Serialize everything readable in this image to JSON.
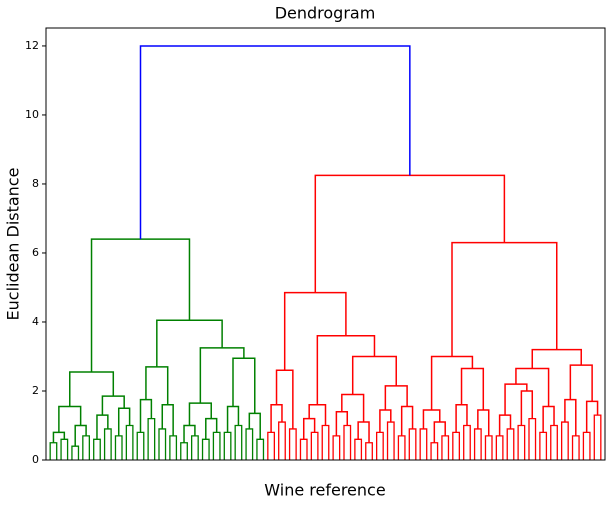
{
  "chart_data": {
    "type": "dendrogram",
    "title": "Dendrogram",
    "xlabel": "Wine reference",
    "ylabel": "Euclidean Distance",
    "ylim": [
      0,
      12.52
    ],
    "yticks": [
      0,
      2,
      4,
      6,
      8,
      10,
      12
    ],
    "tree": {
      "height": 12,
      "color": "#0000ff",
      "children": [
        {
          "height": 6.4,
          "color": "#008000",
          "children": [
            {
              "height": 2.55,
              "children": [
                {
                  "height": 1.55,
                  "children": [
                    {
                      "height": 0.8,
                      "children": [
                        {
                          "height": 0.5
                        },
                        {
                          "height": 0.6
                        }
                      ]
                    },
                    {
                      "height": 1.0,
                      "children": [
                        {
                          "height": 0.4
                        },
                        {
                          "height": 0.7
                        }
                      ]
                    }
                  ]
                },
                {
                  "height": 1.85,
                  "children": [
                    {
                      "height": 1.3,
                      "children": [
                        {
                          "height": 0.6
                        },
                        {
                          "height": 0.9
                        }
                      ]
                    },
                    {
                      "height": 1.5,
                      "children": [
                        {
                          "height": 0.7
                        },
                        {
                          "height": 1.0
                        }
                      ]
                    }
                  ]
                }
              ]
            },
            {
              "height": 4.05,
              "children": [
                {
                  "height": 2.7,
                  "children": [
                    {
                      "height": 1.75,
                      "children": [
                        {
                          "height": 0.8
                        },
                        {
                          "height": 1.2
                        }
                      ]
                    },
                    {
                      "height": 1.6,
                      "children": [
                        {
                          "height": 0.9
                        },
                        {
                          "height": 0.7
                        }
                      ]
                    }
                  ]
                },
                {
                  "height": 3.25,
                  "children": [
                    {
                      "height": 1.65,
                      "children": [
                        {
                          "height": 1.0,
                          "children": [
                            {
                              "height": 0.5
                            },
                            {
                              "height": 0.7
                            }
                          ]
                        },
                        {
                          "height": 1.2,
                          "children": [
                            {
                              "height": 0.6
                            },
                            {
                              "height": 0.8
                            }
                          ]
                        }
                      ]
                    },
                    {
                      "height": 2.95,
                      "children": [
                        {
                          "height": 1.55,
                          "children": [
                            {
                              "height": 0.8
                            },
                            {
                              "height": 1.0
                            }
                          ]
                        },
                        {
                          "height": 1.35,
                          "children": [
                            {
                              "height": 0.9
                            },
                            {
                              "height": 0.6
                            }
                          ]
                        }
                      ]
                    }
                  ]
                }
              ]
            }
          ]
        },
        {
          "height": 8.25,
          "color": "#ff0000",
          "children": [
            {
              "height": 4.85,
              "children": [
                {
                  "height": 2.6,
                  "children": [
                    {
                      "height": 1.6,
                      "children": [
                        {
                          "height": 0.8
                        },
                        {
                          "height": 1.1
                        }
                      ]
                    },
                    {
                      "height": 0.9
                    }
                  ]
                },
                {
                  "height": 3.6,
                  "children": [
                    {
                      "height": 1.6,
                      "children": [
                        {
                          "height": 1.2,
                          "children": [
                            {
                              "height": 0.6
                            },
                            {
                              "height": 0.8
                            }
                          ]
                        },
                        {
                          "height": 1.0
                        }
                      ]
                    },
                    {
                      "height": 3.0,
                      "children": [
                        {
                          "height": 1.9,
                          "children": [
                            {
                              "height": 1.4,
                              "children": [
                                {
                                  "height": 0.7
                                },
                                {
                                  "height": 1.0
                                }
                              ]
                            },
                            {
                              "height": 1.1,
                              "children": [
                                {
                                  "height": 0.6
                                },
                                {
                                  "height": 0.5
                                }
                              ]
                            }
                          ]
                        },
                        {
                          "height": 2.15,
                          "children": [
                            {
                              "height": 1.45,
                              "children": [
                                {
                                  "height": 0.8
                                },
                                {
                                  "height": 1.1
                                }
                              ]
                            },
                            {
                              "height": 1.55,
                              "children": [
                                {
                                  "height": 0.7
                                },
                                {
                                  "height": 0.9
                                }
                              ]
                            }
                          ]
                        }
                      ]
                    }
                  ]
                }
              ]
            },
            {
              "height": 6.3,
              "children": [
                {
                  "height": 3.0,
                  "children": [
                    {
                      "height": 1.45,
                      "children": [
                        {
                          "height": 0.9
                        },
                        {
                          "height": 1.1,
                          "children": [
                            {
                              "height": 0.5
                            },
                            {
                              "height": 0.7
                            }
                          ]
                        }
                      ]
                    },
                    {
                      "height": 2.65,
                      "children": [
                        {
                          "height": 1.6,
                          "children": [
                            {
                              "height": 0.8
                            },
                            {
                              "height": 1.0
                            }
                          ]
                        },
                        {
                          "height": 1.45,
                          "children": [
                            {
                              "height": 0.9
                            },
                            {
                              "height": 0.7
                            }
                          ]
                        }
                      ]
                    }
                  ]
                },
                {
                  "height": 3.2,
                  "children": [
                    {
                      "height": 2.65,
                      "children": [
                        {
                          "height": 2.2,
                          "children": [
                            {
                              "height": 1.3,
                              "children": [
                                {
                                  "height": 0.7
                                },
                                {
                                  "height": 0.9
                                }
                              ]
                            },
                            {
                              "height": 2.0,
                              "children": [
                                {
                                  "height": 1.0
                                },
                                {
                                  "height": 1.2
                                }
                              ]
                            }
                          ]
                        },
                        {
                          "height": 1.55,
                          "children": [
                            {
                              "height": 0.8
                            },
                            {
                              "height": 1.0
                            }
                          ]
                        }
                      ]
                    },
                    {
                      "height": 2.75,
                      "children": [
                        {
                          "height": 1.75,
                          "children": [
                            {
                              "height": 1.1
                            },
                            {
                              "height": 0.7
                            }
                          ]
                        },
                        {
                          "height": 1.7,
                          "children": [
                            {
                              "height": 0.8
                            },
                            {
                              "height": 1.3
                            }
                          ]
                        }
                      ]
                    }
                  ]
                }
              ]
            }
          ]
        }
      ]
    }
  }
}
